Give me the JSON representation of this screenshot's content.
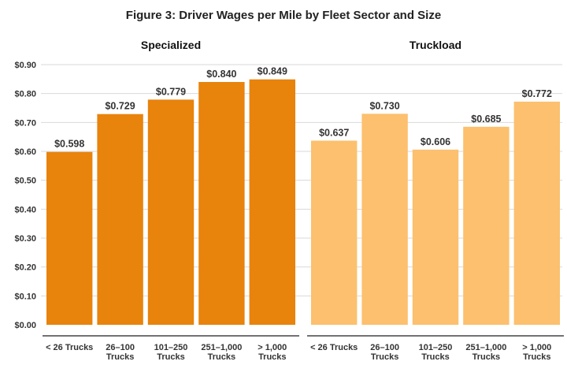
{
  "chart_data": {
    "type": "bar",
    "title": "Figure 3: Driver Wages per Mile by Fleet Sector and Size",
    "xlabel": "",
    "ylabel": "",
    "ylim": [
      0,
      0.9
    ],
    "yticks": [
      "$0.00",
      "$0.10",
      "$0.20",
      "$0.30",
      "$0.40",
      "$0.50",
      "$0.60",
      "$0.70",
      "$0.80",
      "$0.90"
    ],
    "grid": true,
    "categories": [
      "< 26 Trucks",
      "26–100 Trucks",
      "101–250 Trucks",
      "251–1,000 Trucks",
      "> 1,000 Trucks"
    ],
    "category_lines": [
      [
        "< 26 Trucks"
      ],
      [
        "26–100",
        "Trucks"
      ],
      [
        "101–250",
        "Trucks"
      ],
      [
        "251–1,000",
        "Trucks"
      ],
      [
        "> 1,000",
        "Trucks"
      ]
    ],
    "series": [
      {
        "name": "Specialized",
        "color": "#e8830c",
        "values": [
          0.598,
          0.729,
          0.779,
          0.84,
          0.849
        ],
        "labels": [
          "$0.598",
          "$0.729",
          "$0.779",
          "$0.840",
          "$0.849"
        ]
      },
      {
        "name": "Truckload",
        "color": "#fcc06e",
        "values": [
          0.637,
          0.73,
          0.606,
          0.685,
          0.772
        ],
        "labels": [
          "$0.637",
          "$0.730",
          "$0.606",
          "$0.685",
          "$0.772"
        ]
      }
    ]
  }
}
